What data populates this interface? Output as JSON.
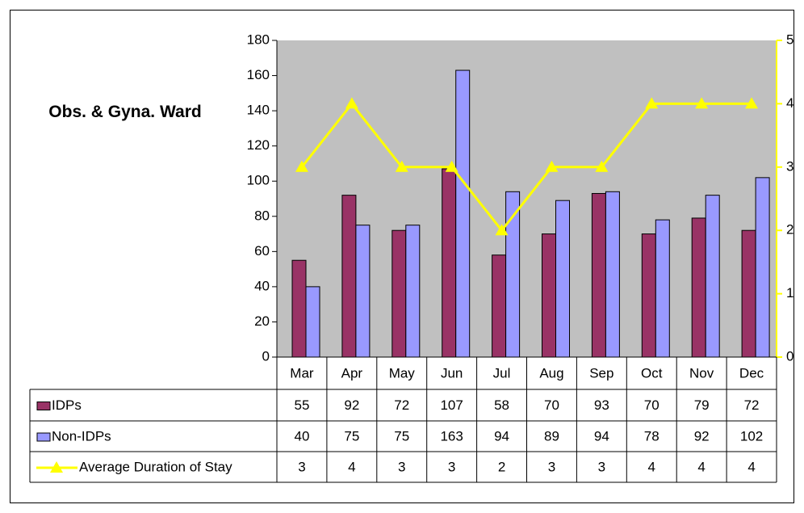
{
  "chart_data": {
    "type": "bar",
    "title": "Obs. & Gyna. Ward",
    "categories": [
      "Mar",
      "Apr",
      "May",
      "Jun",
      "Jul",
      "Aug",
      "Sep",
      "Oct",
      "Nov",
      "Dec"
    ],
    "series": [
      {
        "name": "IDPs",
        "color": "#993366",
        "values": [
          55,
          92,
          72,
          107,
          58,
          70,
          93,
          70,
          79,
          72
        ]
      },
      {
        "name": "Non-IDPs",
        "color": "#9999ff",
        "values": [
          40,
          75,
          75,
          163,
          94,
          89,
          94,
          78,
          92,
          102
        ]
      },
      {
        "name": "Average Duration of Stay",
        "type": "line",
        "axis": "y2",
        "color": "#ffff00",
        "values": [
          3,
          4,
          3,
          3,
          2,
          3,
          3,
          4,
          4,
          4
        ]
      }
    ],
    "ylim": [
      0,
      180
    ],
    "yticks": [
      0,
      20,
      40,
      60,
      80,
      100,
      120,
      140,
      160,
      180
    ],
    "y2lim": [
      0,
      5
    ],
    "y2ticks": [
      0,
      1,
      2,
      3,
      4,
      5
    ],
    "plot_background": "#c0c0c0",
    "data_table": true
  }
}
